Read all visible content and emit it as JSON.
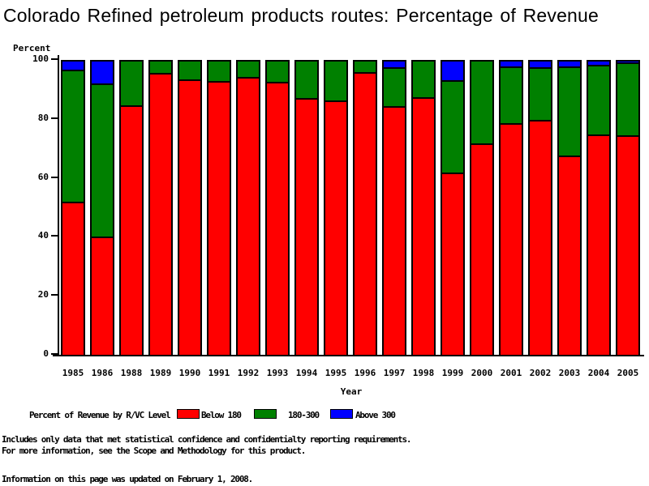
{
  "title": "Colorado Refined petroleum products routes: Percentage of Revenue",
  "chart_data": {
    "type": "bar",
    "stacked": true,
    "title": "Colorado Refined petroleum products routes: Percentage of Revenue",
    "ylabel": "Percent",
    "xlabel": "Year",
    "ylim": [
      0,
      100
    ],
    "yticks": [
      0,
      20,
      40,
      60,
      80,
      100
    ],
    "grid": false,
    "legend_title": "Percent of Revenue by R/VC Level",
    "legend_position": "bottom",
    "categories": [
      "1985",
      "1986",
      "1988",
      "1989",
      "1990",
      "1991",
      "1992",
      "1993",
      "1994",
      "1995",
      "1996",
      "1997",
      "1998",
      "1999",
      "2000",
      "2001",
      "2002",
      "2003",
      "2004",
      "2005"
    ],
    "series": [
      {
        "name": "Below 180",
        "color": "#ff0000",
        "values": [
          52,
          40,
          84.5,
          95.7,
          93.3,
          92.9,
          94.3,
          92.5,
          87,
          86.4,
          95.9,
          84.3,
          87.5,
          61.8,
          71.7,
          78.5,
          79.7,
          67.7,
          74.8,
          74.5
        ]
      },
      {
        "name": "180-300",
        "color": "#008000",
        "values": [
          44.8,
          52,
          15.5,
          4.3,
          6.7,
          7.1,
          5.7,
          7.5,
          13,
          13.6,
          4.1,
          13.3,
          12.5,
          31.4,
          28.3,
          19.2,
          17.8,
          30.1,
          23.5,
          24.7
        ]
      },
      {
        "name": "Above 300",
        "color": "#0000ff",
        "values": [
          3.2,
          8,
          0,
          0,
          0,
          0,
          0,
          0,
          0,
          0,
          0,
          2.4,
          0,
          6.8,
          0,
          2.3,
          2.5,
          2.2,
          1.7,
          0.8
        ]
      }
    ]
  },
  "footer": {
    "line1": "Includes only data that met statistical confidence and confidentialty reporting requirements.",
    "line2": "For more information, see the Scope and Methodology for this product.",
    "line3": "Information on this page was updated on February 1, 2008."
  }
}
